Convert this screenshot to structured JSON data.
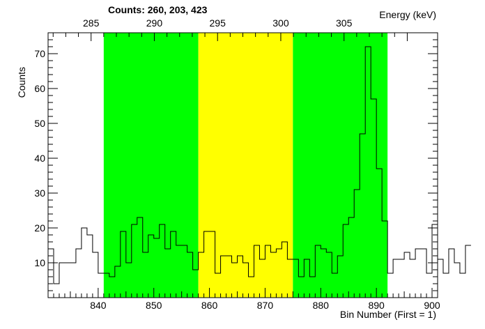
{
  "chart_data": {
    "type": "histogram",
    "title": "Counts:   260,   203,   423",
    "ylabel": "Counts",
    "xlabel": "Bin Number (First = 1)",
    "top_axis_label": "Energy (keV)",
    "xlim": [
      831,
      901
    ],
    "ylim": [
      0,
      76
    ],
    "x_ticks": [
      840,
      850,
      860,
      870,
      880,
      890,
      900
    ],
    "y_ticks": [
      10,
      20,
      30,
      40,
      50,
      60,
      70
    ],
    "top_axis": {
      "ticks": [
        285,
        290,
        295,
        300,
        305
      ],
      "bin_at": [
        836.0,
        846.0,
        856.0,
        866.0,
        876.0,
        886.0,
        896.0,
        906.0
      ],
      "energy_at": [
        283.8,
        288.2,
        292.6,
        297.0,
        301.4,
        305.8,
        310.2,
        314.6
      ]
    },
    "regions": [
      {
        "x0": 841,
        "x1": 858,
        "color": "#00ff00"
      },
      {
        "x0": 858,
        "x1": 875,
        "color": "#ffff00"
      },
      {
        "x0": 875,
        "x1": 892,
        "color": "#00ff00"
      }
    ],
    "bin_start": 831,
    "bin_width": 1,
    "counts": [
      14,
      4,
      10,
      10,
      10,
      14,
      20,
      18,
      13,
      7,
      7,
      6,
      9,
      19,
      10,
      21,
      23,
      13,
      18,
      17,
      21,
      14,
      19,
      15,
      15,
      13,
      8,
      13,
      19,
      19,
      7,
      12,
      12,
      10,
      12,
      10,
      6,
      15,
      11,
      15,
      13,
      14,
      16,
      11,
      11,
      6,
      11,
      6,
      15,
      14,
      13,
      7,
      12,
      21,
      23,
      31,
      47,
      72,
      57,
      37,
      22,
      7,
      11,
      11,
      13,
      11,
      14,
      14,
      7,
      21,
      11,
      7,
      14,
      10,
      7,
      15
    ],
    "colors": {
      "line": "#000000",
      "sideband": "#00ff00",
      "signal": "#ffff00",
      "background": "#ffffff"
    }
  }
}
